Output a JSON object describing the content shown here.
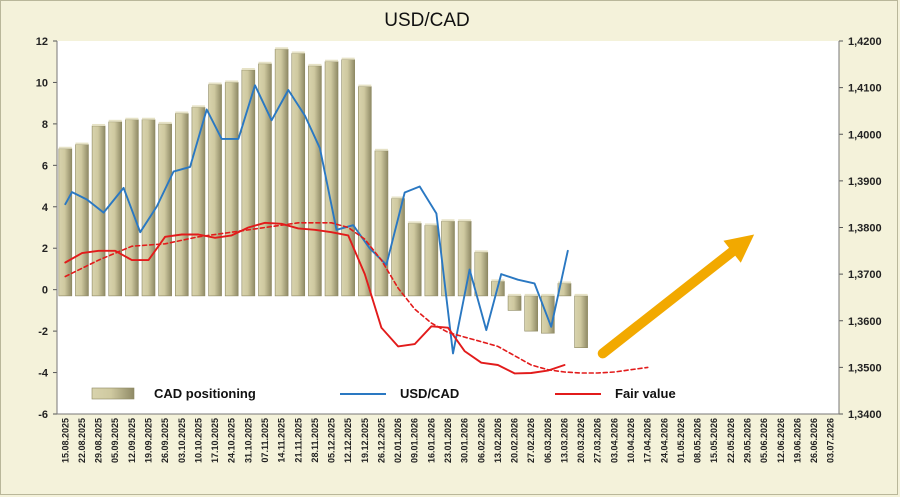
{
  "chart_data": {
    "type": "bar",
    "title": "USD/CAD",
    "left_axis": {
      "min": -6,
      "max": 12,
      "step": 2,
      "tick_labels": [
        "-6",
        "-4",
        "-2",
        "0",
        "2",
        "4",
        "6",
        "8",
        "10",
        "12"
      ]
    },
    "right_axis": {
      "min": 1.34,
      "max": 1.42,
      "step": 0.01,
      "tick_labels": [
        "1,3400",
        "1,3500",
        "1,3600",
        "1,3700",
        "1,3800",
        "1,3900",
        "1,4000",
        "1,4100",
        "1,4200"
      ]
    },
    "x_tick_labels": [
      "15.08.2025",
      "22.08.2025",
      "29.08.2025",
      "05.09.2025",
      "12.09.2025",
      "19.09.2025",
      "26.09.2025",
      "03.10.2025",
      "10.10.2025",
      "17.10.2025",
      "24.10.2025",
      "31.10.2025",
      "07.11.2025",
      "14.11.2025",
      "21.11.2025",
      "28.11.2025",
      "05.12.2025",
      "12.12.2025",
      "19.12.2025",
      "26.12.2025",
      "02.01.2026",
      "09.01.2026",
      "16.01.2026",
      "23.01.2026",
      "30.01.2026",
      "06.02.2026",
      "13.02.2026",
      "20.02.2026",
      "27.02.2026",
      "06.03.2026",
      "13.03.2026",
      "20.03.2026",
      "27.03.2026",
      "03.04.2026",
      "10.04.2026",
      "17.04.2026",
      "24.04.2026",
      "01.05.2026",
      "08.05.2026",
      "15.05.2026",
      "22.05.2026",
      "29.05.2026",
      "05.06.2026",
      "12.06.2026",
      "19.06.2026",
      "26.06.2026",
      "03.07.2026"
    ],
    "bars": {
      "name": "CAD positioning",
      "axis": "left",
      "baseline": -0.3,
      "color": "#bdb78f",
      "values": [
        6.8,
        7.0,
        7.9,
        8.1,
        8.2,
        8.2,
        8.0,
        8.5,
        8.8,
        9.9,
        10.0,
        10.6,
        10.9,
        11.6,
        11.4,
        10.8,
        11.0,
        11.1,
        9.8,
        6.7,
        4.4,
        3.2,
        3.1,
        3.3,
        3.3,
        1.8,
        0.4,
        -1.0,
        -2.0,
        -2.1,
        0.3,
        -2.8
      ]
    },
    "series": [
      {
        "name": "USD/CAD",
        "axis": "right",
        "color": "#2a78c2",
        "points": [
          [
            0,
            1.385
          ],
          [
            0.4,
            1.3876
          ],
          [
            1.3,
            1.386
          ],
          [
            2.3,
            1.3832
          ],
          [
            3.5,
            1.3885
          ],
          [
            4.5,
            1.379
          ],
          [
            5.5,
            1.3845
          ],
          [
            6.5,
            1.392
          ],
          [
            7.5,
            1.393
          ],
          [
            8.5,
            1.4053
          ],
          [
            9.4,
            1.399
          ],
          [
            10.4,
            1.399
          ],
          [
            11.4,
            1.4105
          ],
          [
            12.4,
            1.403
          ],
          [
            13.4,
            1.4095
          ],
          [
            14.4,
            1.404
          ],
          [
            15.3,
            1.397
          ],
          [
            16.3,
            1.3795
          ],
          [
            17.3,
            1.3805
          ],
          [
            18.3,
            1.3755
          ],
          [
            19.3,
            1.372
          ],
          [
            20.4,
            1.3875
          ],
          [
            21.3,
            1.3888
          ],
          [
            22.3,
            1.383
          ],
          [
            23.3,
            1.353
          ],
          [
            24.3,
            1.371
          ],
          [
            25.3,
            1.358
          ],
          [
            26.2,
            1.37
          ],
          [
            27.2,
            1.3688
          ],
          [
            28.2,
            1.368
          ],
          [
            29.2,
            1.3587
          ],
          [
            30.2,
            1.375
          ]
        ]
      },
      {
        "name": "Fair value",
        "axis": "right",
        "color": "#e21b1b",
        "points": [
          [
            0,
            1.3725
          ],
          [
            1.0,
            1.3745
          ],
          [
            2.0,
            1.375
          ],
          [
            3.0,
            1.375
          ],
          [
            4.0,
            1.373
          ],
          [
            5.0,
            1.373
          ],
          [
            6.0,
            1.378
          ],
          [
            7.0,
            1.3785
          ],
          [
            8.0,
            1.3785
          ],
          [
            9.0,
            1.3778
          ],
          [
            10.0,
            1.3783
          ],
          [
            11.0,
            1.38
          ],
          [
            12.0,
            1.381
          ],
          [
            13.0,
            1.3808
          ],
          [
            14.0,
            1.3798
          ],
          [
            15.0,
            1.3795
          ],
          [
            16.0,
            1.379
          ],
          [
            17.0,
            1.3783
          ],
          [
            18.0,
            1.37
          ],
          [
            19.0,
            1.3585
          ],
          [
            20.0,
            1.3545
          ],
          [
            21.0,
            1.355
          ],
          [
            22.0,
            1.3588
          ],
          [
            23.0,
            1.3585
          ],
          [
            24.0,
            1.3535
          ],
          [
            25.0,
            1.351
          ],
          [
            26.0,
            1.3505
          ],
          [
            27.0,
            1.3487
          ],
          [
            28.0,
            1.3488
          ],
          [
            29.0,
            1.3493
          ],
          [
            30.0,
            1.3505
          ]
        ]
      },
      {
        "name": "Fair value forecast",
        "axis": "right",
        "color": "#e21b1b",
        "dashed": true,
        "points": [
          [
            0,
            1.3695
          ],
          [
            2,
            1.373
          ],
          [
            4,
            1.376
          ],
          [
            6,
            1.3765
          ],
          [
            8,
            1.378
          ],
          [
            10,
            1.379
          ],
          [
            12,
            1.38
          ],
          [
            14,
            1.381
          ],
          [
            16,
            1.381
          ],
          [
            17,
            1.38
          ],
          [
            18,
            1.3775
          ],
          [
            19,
            1.373
          ],
          [
            20,
            1.367
          ],
          [
            21,
            1.3625
          ],
          [
            22,
            1.3595
          ],
          [
            23,
            1.3575
          ],
          [
            24,
            1.3565
          ],
          [
            25,
            1.3555
          ],
          [
            26,
            1.3545
          ],
          [
            27,
            1.3525
          ],
          [
            28,
            1.3505
          ],
          [
            29,
            1.3495
          ],
          [
            30,
            1.349
          ],
          [
            31,
            1.3488
          ],
          [
            32,
            1.3488
          ],
          [
            33,
            1.349
          ],
          [
            34,
            1.3495
          ],
          [
            35,
            1.35
          ]
        ]
      }
    ],
    "legend": {
      "position": "bottom",
      "items": [
        {
          "label": "CAD positioning",
          "kind": "bar"
        },
        {
          "label": "USD/CAD",
          "kind": "line",
          "color": "#2a78c2"
        },
        {
          "label": "Fair value",
          "kind": "line",
          "color": "#e21b1b"
        }
      ]
    },
    "annotation": {
      "type": "arrow",
      "color": "#f2a900",
      "from": [
        32.3,
        1.353
      ],
      "to": [
        41.4,
        1.3785
      ]
    }
  }
}
